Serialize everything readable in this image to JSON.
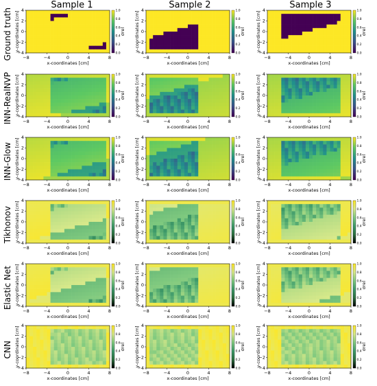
{
  "columns": [
    {
      "title": "Sample 1"
    },
    {
      "title": "Sample 2"
    },
    {
      "title": "Sample 3"
    }
  ],
  "rows": [
    {
      "label": "Ground truth",
      "colormap": "viridis"
    },
    {
      "label": "INN-RealNVP",
      "colormap": "viridis"
    },
    {
      "label": "INN-Glow",
      "colormap": "viridis"
    },
    {
      "label": "Tikhonov",
      "colormap": "ygb"
    },
    {
      "label": "Elastic Net",
      "colormap": "ygb"
    },
    {
      "label": "CNN",
      "colormap": "ygb"
    }
  ],
  "axes": {
    "xlabel": "x-coordinates [cm]",
    "ylabel": "y-coordinates [cm]",
    "xticks": [
      "−8",
      "−4",
      "0",
      "4",
      "8"
    ],
    "yticks": [
      "4",
      "2",
      "0",
      "−2",
      "−4"
    ],
    "xlim": [
      -8,
      8
    ],
    "ylim": [
      -4,
      4
    ],
    "colorbar_label": "σrel",
    "colorbar_ticks_viridis": [
      "1.0",
      "0.8",
      "0.6",
      "0.4",
      "0.2",
      "0.0"
    ],
    "colorbar_ticks_ygb": [
      "1.0",
      "0.8",
      "0.6",
      "0.4",
      "0.2",
      "0.0"
    ]
  },
  "colors": {
    "viridis": [
      "#440154",
      "#3b528b",
      "#21918c",
      "#5ec962",
      "#fde725"
    ],
    "ygb": [
      "#000000",
      "#2c6f3f",
      "#3e9a6a",
      "#7fc97f",
      "#d8e98a",
      "#fde725"
    ]
  }
}
